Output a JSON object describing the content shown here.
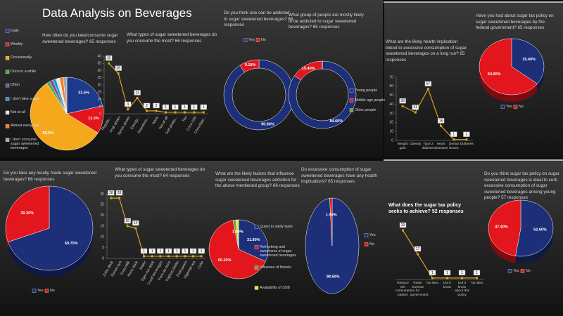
{
  "title": "Data Analysis on Beverages",
  "chart_data": [
    {
      "type": "pie",
      "title": "How often do you take/consume sugar sweetened beverages?  65 responses",
      "categories": [
        "Daily",
        "Weekly",
        "Occasionally",
        "Once in a while",
        "Often",
        "I don't take sugar",
        "Not at all",
        "Almost every day",
        "I don't consume sugar sweetened beverages"
      ],
      "values": [
        21.5,
        12.3,
        56.9,
        1.5,
        1.5,
        1.5,
        1.6,
        1.6,
        1.6
      ],
      "value_labels": [
        "21.5%",
        "12.3%",
        "56.9%",
        null,
        null,
        null,
        null,
        null,
        null
      ],
      "colors": [
        "#1c3a8c",
        "#e3161d",
        "#f5a81c",
        "#5aa646",
        "#8248a8",
        "#1aa3b8",
        "#e6e6e6",
        "#ff7a1a",
        "#a8a8a8"
      ]
    },
    {
      "type": "line",
      "title": "What types of sugar sweetened beverages do you consume the most? 66 responses",
      "categories": [
        "Regular...",
        "Fruit drinks",
        "Sports drinks",
        "Energy...",
        "Sweetene...",
        "None",
        "Not at all",
        "Soft drinks...",
        "Tea",
        "Coca cola",
        "Chocolate..."
      ],
      "values": [
        35,
        28,
        3,
        11,
        2,
        2,
        1,
        1,
        1,
        1,
        1
      ],
      "color": "#d9a21b",
      "ylim": [
        0,
        40
      ],
      "yticks": [
        0,
        5,
        10,
        15,
        20,
        25,
        30,
        35,
        40
      ]
    },
    {
      "type": "donut",
      "title": "Do you think one can be addicted to sugar sweetened beverages?  66 responses",
      "categories": [
        "Yes",
        "No"
      ],
      "values": [
        90.9,
        9.1
      ],
      "value_labels": [
        "90.90%",
        "9.10%"
      ],
      "colors": [
        "#1c2f78",
        "#e3161d"
      ]
    },
    {
      "type": "donut",
      "title": "What group of people are mostly likely to be addicted to sugar sweetened beverages? 65 responses",
      "categories": [
        "Young people",
        "Middle age people",
        "Older people"
      ],
      "values": [
        84.6,
        15.4,
        0
      ],
      "value_labels": [
        "84.60%",
        "15.40%",
        null
      ],
      "colors": [
        "#1c2f78",
        "#e3161d",
        "#5aa646"
      ]
    },
    {
      "type": "line",
      "title": "What are the likely health implication linked to excessive consumption of sugar sweetened beverages on a long run?  65 responses",
      "categories": [
        "Weight gain",
        "Obesity",
        "Type 2 diabetes",
        "Heart diseases",
        "Dental issues",
        "Diabetes"
      ],
      "values": [
        38,
        31,
        57,
        16,
        1,
        1
      ],
      "color": "#d9a21b",
      "ylim": [
        0,
        70
      ],
      "yticks": [
        0,
        10,
        20,
        30,
        40,
        50,
        60,
        70
      ]
    },
    {
      "type": "pie",
      "three_d": true,
      "title": "Have you had about sugar tax policy on sugar sweetened beverages by the federal government? 65 responses",
      "categories": [
        "Yes",
        "No"
      ],
      "values": [
        35.4,
        64.6
      ],
      "value_labels": [
        "35.40%",
        "64.60%"
      ],
      "colors": [
        "#1c2f78",
        "#e3161d"
      ]
    },
    {
      "type": "pie",
      "three_d": true,
      "title": "Do you take any locally made sugar sweetened beverages? 66 responses",
      "categories": [
        "Yes",
        "No"
      ],
      "values": [
        69.7,
        30.3
      ],
      "value_labels": [
        "69.70%",
        "30.30%"
      ],
      "colors": [
        "#1c2f78",
        "#e3161d"
      ]
    },
    {
      "type": "line",
      "title": "What types of sugar sweetened beverages do you consume the most? 64 responses",
      "categories": [
        "Zobo drink",
        "Kunun aya",
        "Soya milk",
        "Kunu drink",
        "Water",
        "Tiger nut drink",
        "Local beverages",
        "Fura da nono",
        "Yoghurt drinks",
        "Fruit juices",
        "Nigerian tea",
        "Coke"
      ],
      "values": [
        28,
        28,
        15,
        14,
        1,
        1,
        1,
        1,
        1,
        1,
        1,
        1
      ],
      "color": "#d9a21b",
      "ylim": [
        0,
        30
      ],
      "yticks": [
        0,
        5,
        10,
        15,
        20,
        25,
        30
      ]
    },
    {
      "type": "pie",
      "title": "What are the likely factors that influence sugar sweetened beverages addiction for the above mentioned group?  66 responses",
      "categories": [
        "Quest to satify taste",
        "Refreshing and sweetness of sugar sweetened beverages",
        "Influence of friends",
        "Availability of SSB"
      ],
      "values": [
        31.8,
        65.2,
        1.5,
        1.5
      ],
      "value_labels": [
        "31.80%",
        "65.20%",
        null,
        "1.50%"
      ],
      "colors": [
        "#1c2f78",
        "#e3161d",
        "#5aa646",
        "#e8e23a"
      ]
    },
    {
      "type": "pie",
      "title": "Do excessive consumption of sugar sweetened beverages have any health implications? 65 responses",
      "categories": [
        "Yes",
        "No"
      ],
      "values": [
        98.5,
        1.5
      ],
      "value_labels": [
        "98.50%",
        "1.50%"
      ],
      "colors": [
        "#1c2f78",
        "#e3161d"
      ]
    },
    {
      "type": "line",
      "title": "What does the sugar tax policy seeks to achieve?  52 responses",
      "categories": [
        "Reduce the consumption pattern",
        "Raise revenue for government",
        "No idea",
        "Don't know",
        "Don't know about this policy",
        "No idea"
      ],
      "values": [
        33,
        17,
        1,
        1,
        1,
        1
      ],
      "color": "#d9a21b"
    },
    {
      "type": "pie",
      "three_d": true,
      "title": "Do you think sugar tax policy on sugar sweetened beverages is ideal to curb excessive consumption of sugar sweetened beverages among young people? 57 responses",
      "categories": [
        "Yes",
        "No"
      ],
      "values": [
        52.6,
        47.4
      ],
      "value_labels": [
        "52.60%",
        "47.40%"
      ],
      "colors": [
        "#1c2f78",
        "#e3161d"
      ]
    }
  ]
}
